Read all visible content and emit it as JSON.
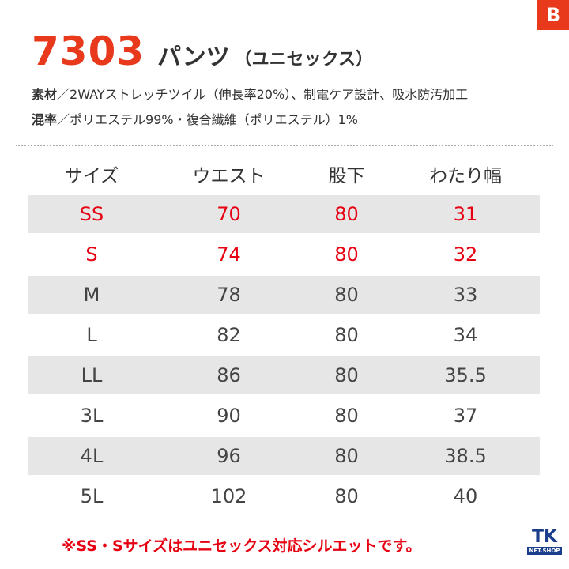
{
  "brand_logo": "B",
  "header": {
    "model": "7303",
    "product": "パンツ",
    "product_sub": "（ユニセックス）"
  },
  "specs": [
    {
      "key": "素材",
      "value": "／2WAYストレッチツイル（伸長率20%）、制電ケア設計、吸水防汚加工"
    },
    {
      "key": "混率",
      "value": "／ポリエステル99%・複合繊維（ポリエステル）1%"
    }
  ],
  "table": {
    "headers": [
      "サイズ",
      "ウエスト",
      "股下",
      "わたり幅"
    ],
    "rows": [
      {
        "cells": [
          "SS",
          "70",
          "80",
          "31"
        ],
        "highlight": true
      },
      {
        "cells": [
          "S",
          "74",
          "80",
          "32"
        ],
        "highlight": true
      },
      {
        "cells": [
          "M",
          "78",
          "80",
          "33"
        ],
        "highlight": false
      },
      {
        "cells": [
          "L",
          "82",
          "80",
          "34"
        ],
        "highlight": false
      },
      {
        "cells": [
          "LL",
          "86",
          "80",
          "35.5"
        ],
        "highlight": false
      },
      {
        "cells": [
          "3L",
          "90",
          "80",
          "37"
        ],
        "highlight": false
      },
      {
        "cells": [
          "4L",
          "96",
          "80",
          "38.5"
        ],
        "highlight": false
      },
      {
        "cells": [
          "5L",
          "102",
          "80",
          "40"
        ],
        "highlight": false
      }
    ]
  },
  "note": "※SS・Sサイズはユニセックス対応シルエットです。",
  "footer_logo": {
    "main": "TK",
    "sub": "NET.SHOP"
  },
  "colors": {
    "accent": "#e8391d",
    "highlight_text": "#e60012",
    "row_shade": "#e6e6e6",
    "logo_blue": "#1a3e8c"
  }
}
